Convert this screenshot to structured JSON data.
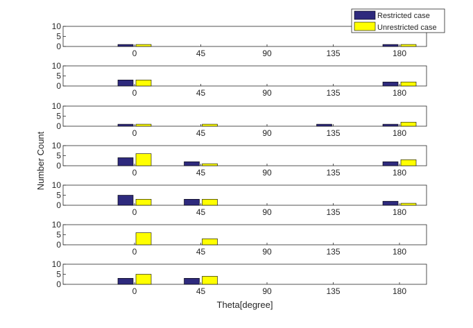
{
  "chart_data": {
    "type": "bar",
    "xlabel": "Theta[degree]",
    "ylabel": "Number Count",
    "categories": [
      "0",
      "45",
      "90",
      "135",
      "180"
    ],
    "x_ticks": [
      0,
      45,
      90,
      135,
      180
    ],
    "ylim": [
      0,
      10
    ],
    "y_ticks": [
      0,
      5,
      10
    ],
    "y_tick_labels": [
      "0",
      "5",
      "10"
    ],
    "grid": false,
    "legend": {
      "position": "top-right",
      "entries": [
        "Restricted case",
        "Unrestricted case"
      ]
    },
    "series_colors": {
      "restricted": "#2e2a7d",
      "unrestricted": "#ffff00"
    },
    "panels": [
      {
        "restricted": [
          1,
          0,
          0,
          0,
          1
        ],
        "unrestricted": [
          1,
          0,
          0,
          0,
          1
        ]
      },
      {
        "restricted": [
          3,
          0,
          0,
          0,
          2
        ],
        "unrestricted": [
          3,
          0,
          0,
          0,
          2
        ]
      },
      {
        "restricted": [
          1,
          0,
          0,
          1,
          1
        ],
        "unrestricted": [
          1,
          1,
          0,
          0,
          2
        ]
      },
      {
        "restricted": [
          4,
          2,
          0,
          0,
          2
        ],
        "unrestricted": [
          6,
          1,
          0,
          0,
          3
        ]
      },
      {
        "restricted": [
          5,
          3,
          0,
          0,
          2
        ],
        "unrestricted": [
          3,
          3,
          0,
          0,
          1
        ]
      },
      {
        "restricted": [
          0,
          0,
          0,
          0,
          0
        ],
        "unrestricted": [
          6,
          3,
          0,
          0,
          0
        ]
      },
      {
        "restricted": [
          3,
          3,
          0,
          0,
          0
        ],
        "unrestricted": [
          5,
          4,
          0,
          0,
          0
        ]
      }
    ]
  }
}
